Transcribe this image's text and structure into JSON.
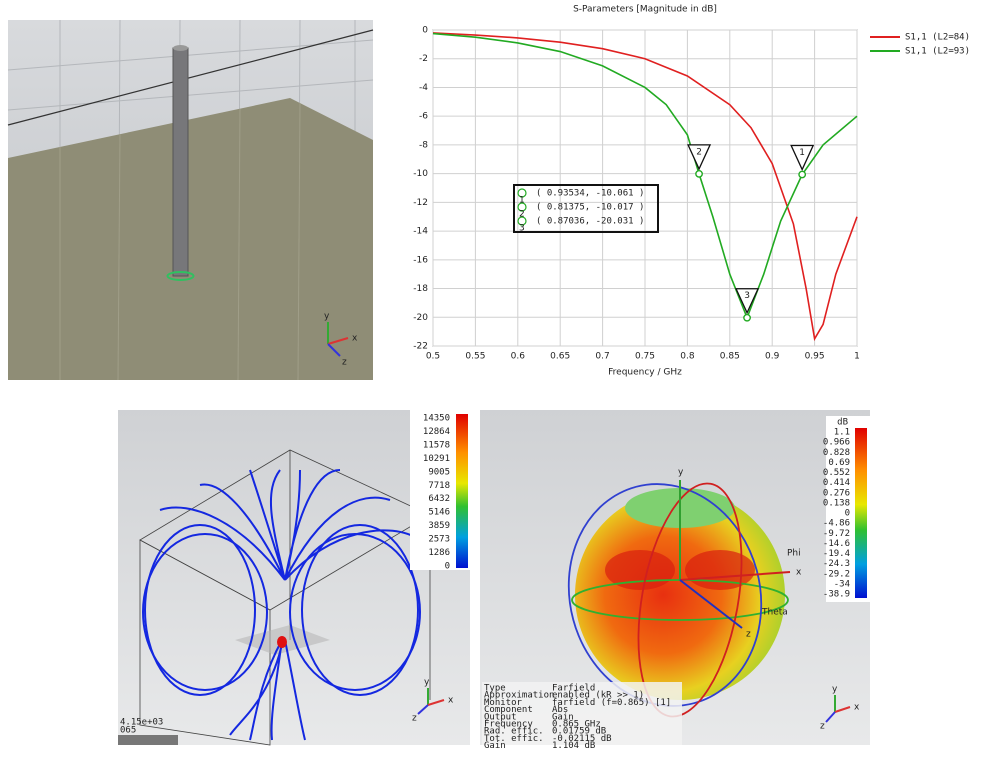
{
  "view_axes": {
    "y": "y",
    "x": "x",
    "z": "z"
  },
  "chart_data": {
    "type": "line",
    "title": "S-Parameters [Magnitude in dB]",
    "x_label": "Frequency / GHz",
    "xlim": [
      0.5,
      1
    ],
    "ylim": [
      -22,
      0
    ],
    "xticks": [
      0.5,
      0.55,
      0.6,
      0.65,
      0.7,
      0.75,
      0.8,
      0.85,
      0.9,
      0.95,
      1
    ],
    "yticks": [
      0,
      -2,
      -4,
      -6,
      -8,
      -10,
      -12,
      -14,
      -16,
      -18,
      -20,
      -22
    ],
    "grid": true,
    "legend": "right",
    "series": [
      {
        "name": "S1,1 (L2=84)",
        "color": "#e02020",
        "x": [
          0.5,
          0.55,
          0.6,
          0.65,
          0.7,
          0.75,
          0.8,
          0.85,
          0.875,
          0.9,
          0.925,
          0.94,
          0.95,
          0.96,
          0.975,
          1.0
        ],
        "values": [
          -0.2,
          -0.35,
          -0.55,
          -0.85,
          -1.3,
          -2.0,
          -3.2,
          -5.2,
          -6.8,
          -9.3,
          -13.5,
          -18,
          -21.5,
          -20.5,
          -17,
          -13
        ]
      },
      {
        "name": "S1,1 (L2=93)",
        "color": "#22aa22",
        "x": [
          0.5,
          0.55,
          0.6,
          0.65,
          0.7,
          0.75,
          0.775,
          0.8,
          0.81375,
          0.83,
          0.85,
          0.87036,
          0.89,
          0.91,
          0.93534,
          0.96,
          1.0
        ],
        "values": [
          -0.25,
          -0.5,
          -0.9,
          -1.5,
          -2.5,
          -4.0,
          -5.2,
          -7.3,
          -10.017,
          -13,
          -17,
          -20.031,
          -17,
          -13.3,
          -10.061,
          -8,
          -6
        ]
      }
    ],
    "markers": [
      {
        "label": "1",
        "x": 0.93534,
        "y": -10.061,
        "readout": "( 0.93534, -10.061 )"
      },
      {
        "label": "2",
        "x": 0.81375,
        "y": -10.017,
        "readout": "( 0.81375, -10.017 )"
      },
      {
        "label": "3",
        "x": 0.87036,
        "y": -20.031,
        "readout": "( 0.87036, -20.031 )"
      }
    ]
  },
  "field_plot": {
    "colorbar_labels": [
      "14350",
      "12864",
      "11578",
      "10291",
      "9005",
      "7718",
      "6432",
      "5146",
      "3859",
      "2573",
      "1286",
      "0"
    ],
    "readout": [
      "4.15e+03",
      "065"
    ]
  },
  "farfield": {
    "unit": "dB",
    "colorbar_labels": [
      "1.1",
      "0.966",
      "0.828",
      "0.69",
      "0.552",
      "0.414",
      "0.276",
      "0.138",
      "0",
      "-4.86",
      "-9.72",
      "-14.6",
      "-19.4",
      "-24.3",
      "-29.2",
      "-34",
      "-38.9"
    ],
    "angle_labels": [
      "Phi",
      "Theta"
    ],
    "info": [
      [
        "Type",
        "Farfield"
      ],
      [
        "Approximation",
        "enabled (kR >> 1)"
      ],
      [
        "Monitor",
        "farfield (f=0.865) [1]"
      ],
      [
        "Component",
        "Abs"
      ],
      [
        "Output",
        "Gain"
      ],
      [
        "Frequency",
        "0.865 GHz"
      ],
      [
        "Rad. effic.",
        "0.01759 dB"
      ],
      [
        "Tot. effic.",
        "-0.02115 dB"
      ],
      [
        "Gain",
        "1.104 dB"
      ]
    ]
  }
}
